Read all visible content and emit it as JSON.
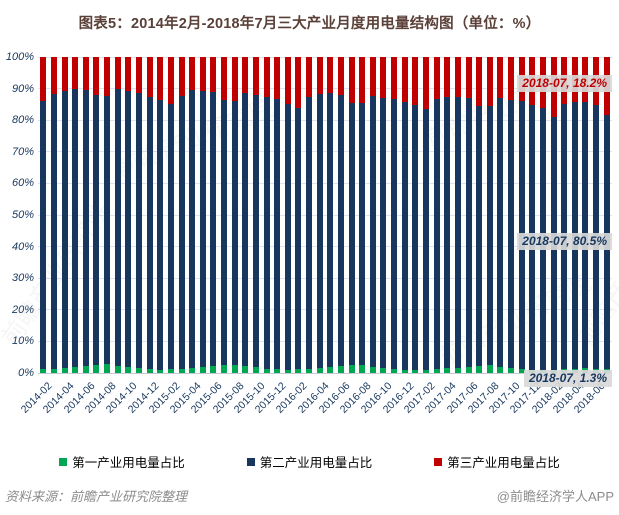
{
  "title": "图表5：2014年2月-2018年7月三大产业月度用电量结构图（单位：%）",
  "title_color": "#5a4038",
  "axis_text_color": "#17375e",
  "footer": {
    "source_note": "资料来源：前瞻产业研究院整理",
    "credit": "@前瞻经济学人APP"
  },
  "watermark_text": "前瞻产业研究院",
  "legend": [
    {
      "label": "第一产业用电量占比",
      "color": "#00a651"
    },
    {
      "label": "第二产业用电量占比",
      "color": "#17375e"
    },
    {
      "label": "第三产业用电量占比",
      "color": "#c00000"
    }
  ],
  "annotations": [
    {
      "text": "2018-07, 18.2%",
      "color": "#c00000",
      "month": "2018-07",
      "value": 18.2,
      "series": "第三产业用电量占比"
    },
    {
      "text": "2018-07, 80.5%",
      "color": "#17375e",
      "month": "2018-07",
      "value": 80.5,
      "series": "第二产业用电量占比"
    },
    {
      "text": "2018-07, 1.3%",
      "color": "#17375e",
      "month": "2018-07",
      "value": 1.3,
      "series": "第一产业用电量占比"
    }
  ],
  "chart_data": {
    "type": "bar",
    "stacked": true,
    "stack_total": 100,
    "ylim": [
      0,
      100
    ],
    "yticks": [
      "0%",
      "10%",
      "20%",
      "30%",
      "40%",
      "50%",
      "60%",
      "70%",
      "80%",
      "90%",
      "100%"
    ],
    "grid": true,
    "legend_position": "bottom",
    "x_tick_every": 2,
    "x": [
      "2014-02",
      "2014-03",
      "2014-04",
      "2014-05",
      "2014-06",
      "2014-07",
      "2014-08",
      "2014-09",
      "2014-10",
      "2014-11",
      "2014-12",
      "2015-01",
      "2015-02",
      "2015-03",
      "2015-04",
      "2015-05",
      "2015-06",
      "2015-07",
      "2015-08",
      "2015-09",
      "2015-10",
      "2015-11",
      "2015-12",
      "2016-01",
      "2016-02",
      "2016-03",
      "2016-04",
      "2016-05",
      "2016-06",
      "2016-07",
      "2016-08",
      "2016-09",
      "2016-10",
      "2016-11",
      "2016-12",
      "2017-01",
      "2017-02",
      "2017-03",
      "2017-04",
      "2017-05",
      "2017-06",
      "2017-07",
      "2017-08",
      "2017-09",
      "2017-10",
      "2017-11",
      "2017-12",
      "2018-01",
      "2018-02",
      "2018-03",
      "2018-04",
      "2018-05",
      "2018-06",
      "2018-07"
    ],
    "series": [
      {
        "name": "第一产业用电量占比",
        "color": "#00a651",
        "values": [
          1.2,
          1.4,
          1.7,
          1.9,
          2.2,
          2.6,
          2.7,
          2.2,
          1.8,
          1.5,
          1.2,
          1.1,
          1.2,
          1.4,
          1.7,
          1.9,
          2.2,
          2.5,
          2.6,
          2.1,
          1.8,
          1.4,
          1.2,
          1.1,
          1.2,
          1.4,
          1.6,
          1.8,
          2.1,
          2.4,
          2.5,
          2.0,
          1.7,
          1.4,
          1.1,
          1.0,
          1.1,
          1.3,
          1.5,
          1.7,
          2.0,
          2.3,
          2.4,
          1.9,
          1.6,
          1.3,
          1.1,
          1.0,
          1.1,
          1.2,
          1.4,
          1.5,
          1.4,
          1.3
        ]
      },
      {
        "name": "第二产业用电量占比",
        "color": "#17375e",
        "values": [
          84.9,
          86.8,
          87.6,
          88.0,
          87.5,
          85.4,
          85.1,
          87.8,
          87.6,
          87.2,
          86.1,
          85.2,
          83.8,
          86.4,
          87.8,
          87.5,
          86.8,
          83.9,
          83.4,
          86.5,
          86.3,
          86.0,
          85.5,
          84.0,
          82.6,
          85.8,
          86.8,
          86.7,
          86.0,
          83.2,
          82.9,
          85.6,
          85.4,
          85.2,
          84.6,
          83.9,
          82.4,
          85.4,
          86.0,
          85.8,
          85.0,
          82.3,
          82.0,
          85.0,
          84.8,
          84.7,
          83.6,
          82.9,
          79.9,
          83.8,
          84.5,
          84.3,
          83.5,
          80.5
        ]
      },
      {
        "name": "第三产业用电量占比",
        "color": "#c00000",
        "values": [
          13.9,
          11.8,
          10.7,
          10.1,
          10.3,
          12.0,
          12.2,
          10.0,
          10.6,
          11.3,
          12.7,
          13.7,
          15.0,
          12.2,
          10.5,
          10.6,
          11.0,
          13.6,
          14.0,
          11.4,
          11.9,
          12.6,
          13.3,
          14.9,
          16.2,
          12.8,
          11.6,
          11.5,
          11.9,
          14.4,
          14.6,
          12.4,
          12.9,
          13.4,
          14.3,
          15.1,
          16.5,
          13.3,
          12.5,
          12.5,
          13.0,
          15.4,
          15.6,
          13.1,
          13.6,
          14.0,
          15.3,
          16.1,
          19.0,
          15.0,
          14.1,
          14.2,
          15.1,
          18.2
        ]
      }
    ]
  }
}
